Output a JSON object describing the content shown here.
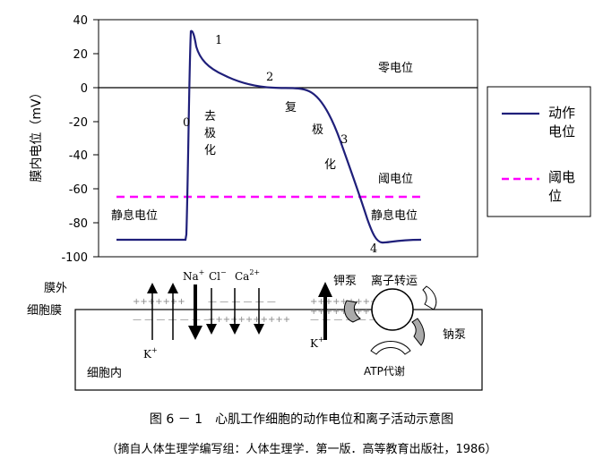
{
  "figure": {
    "y_axis_label": "膜内电位（mV）",
    "y_ticks": [
      "40",
      "20",
      "0",
      "-20",
      "-40",
      "-60",
      "-80",
      "-100"
    ],
    "phase_labels": [
      "0",
      "1",
      "2",
      "3",
      "4"
    ],
    "annotations": {
      "zero_potential": "零电位",
      "threshold_potential": "阈电位",
      "resting_left": "静息电位",
      "resting_right": "静息电位",
      "depol_1": "去",
      "depol_2": "极",
      "depol_3": "化",
      "repol_1": "复",
      "repol_2": "极",
      "repol_3": "化"
    },
    "legend": {
      "action_line1": "动作",
      "action_line2": "电位",
      "threshold_line1": "阈电",
      "threshold_line2": "位"
    },
    "colors": {
      "action": "#1f1f7a",
      "threshold": "#ff00ff"
    }
  },
  "cell": {
    "outside": "膜外",
    "membrane": "细胞膜",
    "inside": "细胞内",
    "na": "Na",
    "na_sup": "+",
    "cl": "Cl",
    "cl_sup": "−",
    "ca": "Ca",
    "ca_sup": "2+",
    "k_left": "K",
    "k_left_sup": "+",
    "k_right": "K",
    "k_right_sup": "+",
    "k_pump": "钾泵",
    "ion_transport": "离子转运",
    "na_pump": "钠泵",
    "atp": "ATP代谢"
  },
  "captions": {
    "title": "图 6 － 1　心肌工作细胞的动作电位和离子活动示意图",
    "source": "（摘自人体生理学编写组：人体生理学．第一版．高等教育出版社，1986）"
  }
}
